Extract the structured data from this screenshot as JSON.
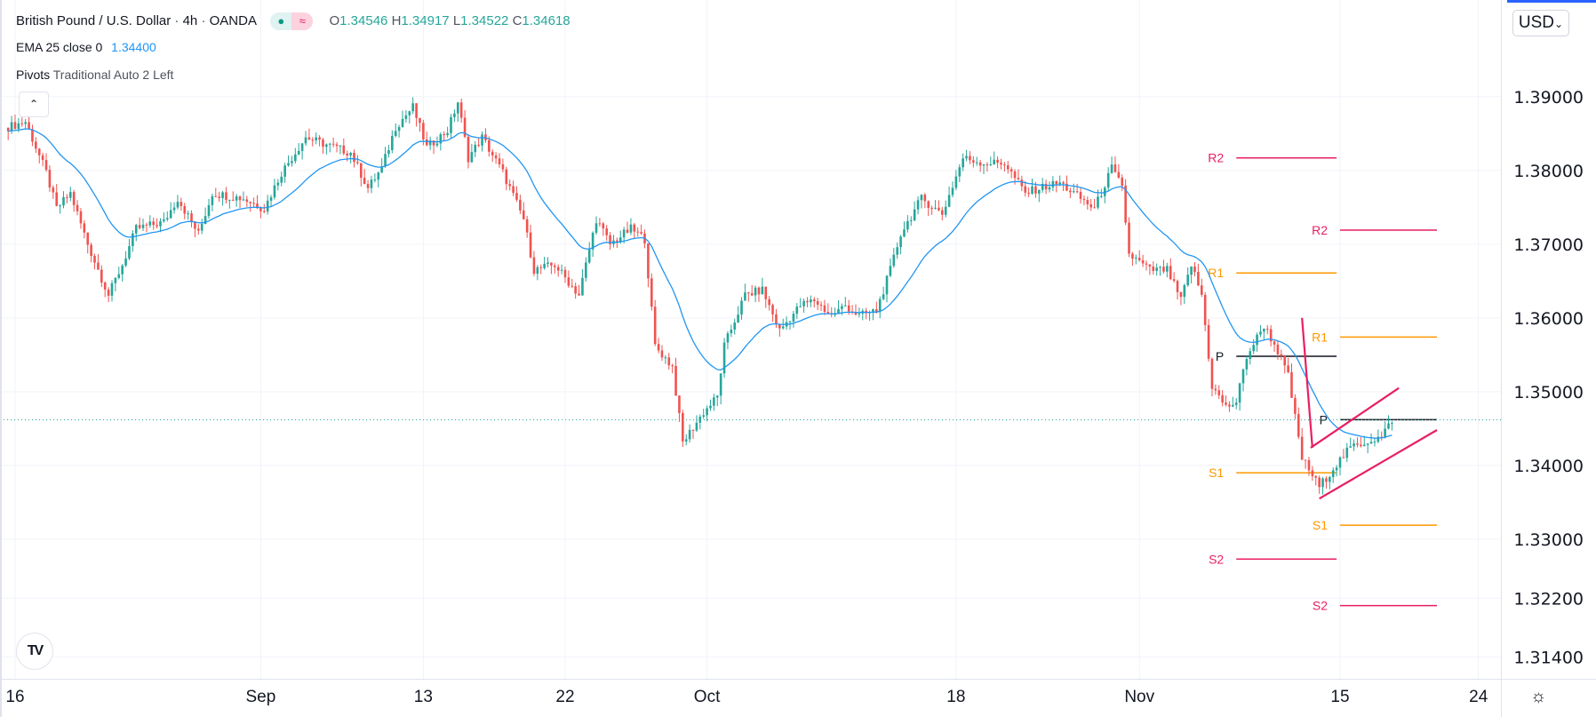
{
  "header": {
    "symbol": "British Pound / U.S. Dollar",
    "interval": "4h",
    "exchange": "OANDA",
    "sep": "·",
    "badge_dot": "●",
    "badge_wave": "≈",
    "ohlc": {
      "o_label": "O",
      "o": "1.34546",
      "h_label": "H",
      "h": "1.34917",
      "l_label": "L",
      "l": "1.34522",
      "c_label": "C",
      "c": "1.34618"
    }
  },
  "indicators": {
    "ema": {
      "name": "EMA 25 close 0",
      "value": "1.34400"
    },
    "pivots": {
      "name": "Pivots",
      "params": "Traditional Auto 2 Left"
    }
  },
  "controls": {
    "collapse": "⌃",
    "currency": "USD",
    "currency_chevron": "⌄",
    "settings_icon": "☼",
    "logo": "TV"
  },
  "colors": {
    "up": "#26a69a",
    "down": "#ef5350",
    "ema": "#2196f3",
    "pivot_p": "#131722",
    "pivot_r1": "#ff9800",
    "pivot_r2": "#e91e63",
    "drawing": "#e91e63",
    "price_line": "#26a69a"
  },
  "chart_data": {
    "type": "candlestick",
    "title": "British Pound / U.S. Dollar · 4h · OANDA",
    "ylim": [
      1.3108,
      1.3985
    ],
    "bars": 414,
    "y_ticks": [
      "1.39000",
      "1.38000",
      "1.37000",
      "1.36000",
      "1.35000",
      "1.34000",
      "1.33000",
      "1.32200",
      "1.31400"
    ],
    "y_tick_values": [
      1.39,
      1.38,
      1.37,
      1.36,
      1.35,
      1.34,
      1.33,
      1.322,
      1.314
    ],
    "x_ticks": [
      {
        "label": "16",
        "bar": 2
      },
      {
        "label": "Sep",
        "bar": 73
      },
      {
        "label": "13",
        "bar": 120
      },
      {
        "label": "22",
        "bar": 161
      },
      {
        "label": "Oct",
        "bar": 202
      },
      {
        "label": "18",
        "bar": 274
      },
      {
        "label": "Nov",
        "bar": 327
      },
      {
        "label": "15",
        "bar": 385
      },
      {
        "label": "24",
        "bar": 425
      }
    ],
    "close_path": [
      [
        0,
        1.3859
      ],
      [
        5,
        1.3866
      ],
      [
        11,
        1.3797
      ],
      [
        14,
        1.3748
      ],
      [
        18,
        1.3769
      ],
      [
        23,
        1.37
      ],
      [
        29,
        1.3631
      ],
      [
        33,
        1.3672
      ],
      [
        37,
        1.3721
      ],
      [
        45,
        1.373
      ],
      [
        49,
        1.3762
      ],
      [
        55,
        1.3714
      ],
      [
        59,
        1.3769
      ],
      [
        68,
        1.3762
      ],
      [
        74,
        1.3748
      ],
      [
        79,
        1.3797
      ],
      [
        86,
        1.3845
      ],
      [
        90,
        1.3838
      ],
      [
        99,
        1.3824
      ],
      [
        104,
        1.3776
      ],
      [
        108,
        1.3803
      ],
      [
        112,
        1.3859
      ],
      [
        117,
        1.3886
      ],
      [
        121,
        1.3831
      ],
      [
        127,
        1.3854
      ],
      [
        130,
        1.3893
      ],
      [
        133,
        1.3817
      ],
      [
        137,
        1.3845
      ],
      [
        143,
        1.3797
      ],
      [
        149,
        1.3734
      ],
      [
        152,
        1.3665
      ],
      [
        158,
        1.3672
      ],
      [
        165,
        1.3631
      ],
      [
        170,
        1.3734
      ],
      [
        174,
        1.37
      ],
      [
        180,
        1.3721
      ],
      [
        184,
        1.3707
      ],
      [
        187,
        1.3562
      ],
      [
        192,
        1.3534
      ],
      [
        195,
        1.3431
      ],
      [
        201,
        1.3472
      ],
      [
        205,
        1.3493
      ],
      [
        207,
        1.3562
      ],
      [
        213,
        1.3631
      ],
      [
        218,
        1.3638
      ],
      [
        223,
        1.3583
      ],
      [
        229,
        1.3617
      ],
      [
        233,
        1.3624
      ],
      [
        238,
        1.3603
      ],
      [
        242,
        1.3617
      ],
      [
        246,
        1.3603
      ],
      [
        251,
        1.361
      ],
      [
        255,
        1.3665
      ],
      [
        258,
        1.3714
      ],
      [
        264,
        1.3762
      ],
      [
        270,
        1.3741
      ],
      [
        276,
        1.3817
      ],
      [
        282,
        1.381
      ],
      [
        288,
        1.381
      ],
      [
        294,
        1.3769
      ],
      [
        298,
        1.3776
      ],
      [
        304,
        1.3783
      ],
      [
        310,
        1.3762
      ],
      [
        314,
        1.3748
      ],
      [
        319,
        1.3803
      ],
      [
        322,
        1.3776
      ],
      [
        324,
        1.3686
      ],
      [
        330,
        1.3665
      ],
      [
        335,
        1.3665
      ],
      [
        339,
        1.3624
      ],
      [
        342,
        1.3672
      ],
      [
        345,
        1.3631
      ],
      [
        348,
        1.3507
      ],
      [
        352,
        1.3479
      ],
      [
        355,
        1.3486
      ],
      [
        358,
        1.3548
      ],
      [
        363,
        1.359
      ],
      [
        367,
        1.3555
      ],
      [
        370,
        1.3521
      ],
      [
        372,
        1.3465
      ],
      [
        374,
        1.341
      ],
      [
        379,
        1.3371
      ],
      [
        383,
        1.3396
      ],
      [
        388,
        1.3424
      ],
      [
        394,
        1.3435
      ],
      [
        397,
        1.3438
      ],
      [
        400,
        1.3462
      ]
    ],
    "ema_period": 25,
    "current_price": 1.34618,
    "pivot_sets": [
      {
        "from": 355,
        "to": 384,
        "levels": [
          {
            "label": "R2",
            "value": 1.3817,
            "color": "#e91e63"
          },
          {
            "label": "R1",
            "value": 1.3661,
            "color": "#ff9800"
          },
          {
            "label": "P",
            "value": 1.3548,
            "color": "#131722"
          },
          {
            "label": "S1",
            "value": 1.339,
            "color": "#ff9800"
          },
          {
            "label": "S2",
            "value": 1.3273,
            "color": "#e91e63"
          }
        ]
      },
      {
        "from": 385,
        "to": 413,
        "levels": [
          {
            "label": "R2",
            "value": 1.3719,
            "color": "#e91e63"
          },
          {
            "label": "R1",
            "value": 1.3574,
            "color": "#ff9800"
          },
          {
            "label": "P",
            "value": 1.3462,
            "color": "#131722"
          },
          {
            "label": "S1",
            "value": 1.3319,
            "color": "#ff9800"
          },
          {
            "label": "S2",
            "value": 1.321,
            "color": "#e91e63"
          }
        ]
      }
    ],
    "drawings": [
      {
        "name": "impulse-line",
        "from": [
          374,
          1.36
        ],
        "to": [
          377,
          1.3424
        ]
      },
      {
        "name": "channel-upper",
        "from": [
          376.5,
          1.3424
        ],
        "to": [
          402,
          1.3505
        ]
      },
      {
        "name": "channel-lower",
        "from": [
          379,
          1.3355
        ],
        "to": [
          413,
          1.3448
        ]
      }
    ]
  }
}
